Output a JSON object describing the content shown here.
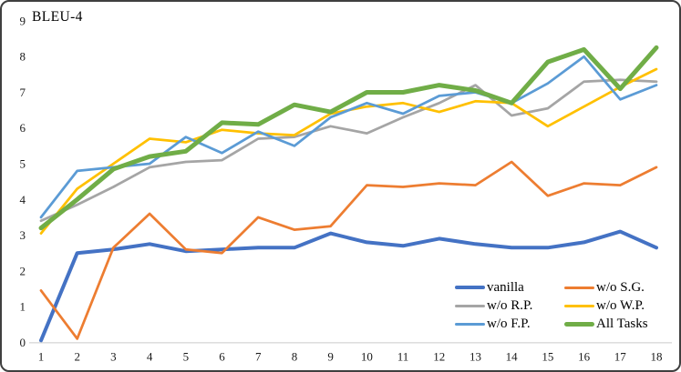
{
  "frame": {
    "background": "#ffffff",
    "border_color": "#3f3f3f",
    "axis_line_color": "#d9d9d9"
  },
  "chart_data": {
    "type": "line",
    "title": "BLEU-4",
    "xlabel": "",
    "ylabel": "",
    "x": [
      1,
      2,
      3,
      4,
      5,
      6,
      7,
      8,
      9,
      10,
      11,
      12,
      13,
      14,
      15,
      16,
      17,
      18
    ],
    "yticks": [
      9,
      8,
      7,
      6,
      5,
      4,
      3,
      2,
      1,
      0
    ],
    "ylim": [
      0,
      9
    ],
    "xlim": [
      1,
      18
    ],
    "grid": false,
    "legend": {
      "position": "inside-bottom-right",
      "columns": 2,
      "order": "row-major"
    },
    "series": [
      {
        "name": "vanilla",
        "color": "#4472C4",
        "line_width": 4,
        "values": [
          0.05,
          2.5,
          2.6,
          2.75,
          2.55,
          2.6,
          2.65,
          2.65,
          3.05,
          2.8,
          2.7,
          2.9,
          2.75,
          2.65,
          2.65,
          2.8,
          3.1,
          2.65
        ]
      },
      {
        "name": "w/o S.G.",
        "color": "#ED7D31",
        "line_width": 2.75,
        "values": [
          1.45,
          0.1,
          2.65,
          3.6,
          2.6,
          2.5,
          3.5,
          3.15,
          3.25,
          4.4,
          4.35,
          4.45,
          4.4,
          5.05,
          4.1,
          4.45,
          4.4,
          4.9
        ]
      },
      {
        "name": "w/o R.P.",
        "color": "#A5A5A5",
        "line_width": 2.75,
        "values": [
          3.4,
          3.85,
          4.35,
          4.9,
          5.05,
          5.1,
          5.7,
          5.75,
          6.05,
          5.85,
          6.3,
          6.7,
          7.2,
          6.35,
          6.55,
          7.3,
          7.35,
          7.3
        ]
      },
      {
        "name": "w/o W.P.",
        "color": "#FFC000",
        "line_width": 2.75,
        "values": [
          3.05,
          4.3,
          5.0,
          5.7,
          5.6,
          5.95,
          5.85,
          5.8,
          6.4,
          6.6,
          6.7,
          6.45,
          6.75,
          6.7,
          6.05,
          6.6,
          7.15,
          7.65
        ]
      },
      {
        "name": "w/o F.P.",
        "color": "#5B9BD5",
        "line_width": 2.75,
        "values": [
          3.5,
          4.8,
          4.9,
          5.0,
          5.75,
          5.3,
          5.9,
          5.5,
          6.3,
          6.7,
          6.4,
          6.9,
          7.0,
          6.7,
          7.25,
          8.0,
          6.8,
          7.2
        ]
      },
      {
        "name": "All Tasks",
        "color": "#70AD47",
        "line_width": 5,
        "values": [
          3.2,
          4.0,
          4.85,
          5.2,
          5.35,
          6.15,
          6.1,
          6.65,
          6.45,
          7.0,
          7.0,
          7.2,
          7.05,
          6.7,
          7.85,
          8.2,
          7.1,
          8.25
        ]
      }
    ]
  }
}
